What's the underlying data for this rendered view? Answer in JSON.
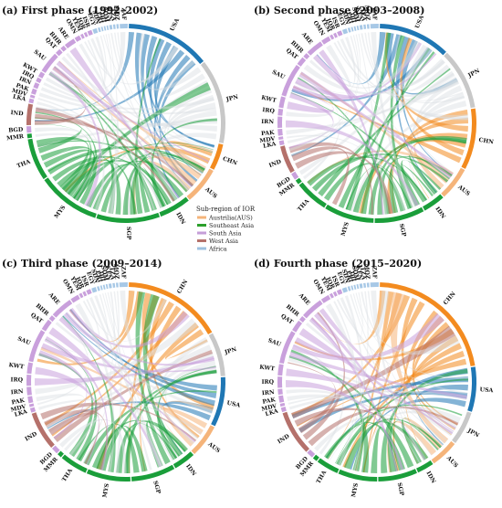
{
  "chart_data": {
    "type": "chord",
    "legend": {
      "title": "Sub-region of IOR",
      "entries": [
        {
          "name": "Austrilia(AUS)",
          "color": "#f5b47a"
        },
        {
          "name": "Southeast Asia",
          "color": "#2ca02c"
        },
        {
          "name": "South Asia",
          "color": "#c59ed8"
        },
        {
          "name": "West Asia",
          "color": "#b5716b"
        },
        {
          "name": "Africa",
          "color": "#9ec1e0"
        }
      ]
    },
    "colors": {
      "USA": "#1f77b4",
      "JPN": "#c8c8c8",
      "CHN": "#f38b1f",
      "Austrilia(AUS)": "#f5b47a",
      "Southeast Asia": "#1a9e3a",
      "South Asia": "#c9a0dc",
      "West Asia": "#b5716b",
      "Africa": "#a7c8e6"
    },
    "panels": [
      {
        "title": "(a) First phase (1992–2002)",
        "sectors": [
          {
            "name": "USA",
            "group": "USA",
            "weight": 16
          },
          {
            "name": "JPN",
            "group": "JPN",
            "weight": 16
          },
          {
            "name": "CHN",
            "group": "CHN",
            "weight": 5
          },
          {
            "name": "AUS",
            "group": "Austrilia(AUS)",
            "weight": 7
          },
          {
            "name": "IDN",
            "group": "Southeast Asia",
            "weight": 6
          },
          {
            "name": "SGP",
            "group": "Southeast Asia",
            "weight": 12
          },
          {
            "name": "MYS",
            "group": "Southeast Asia",
            "weight": 12
          },
          {
            "name": "THA",
            "group": "Southeast Asia",
            "weight": 8
          },
          {
            "name": "MMR",
            "group": "Southeast Asia",
            "weight": 0.8
          },
          {
            "name": "BGD",
            "group": "South Asia",
            "weight": 1.2
          },
          {
            "name": "IND",
            "group": "West Asia",
            "weight": 4
          },
          {
            "name": "LKA",
            "group": "South Asia",
            "weight": 0.8
          },
          {
            "name": "MDV",
            "group": "South Asia",
            "weight": 0.5
          },
          {
            "name": "PAK",
            "group": "South Asia",
            "weight": 1
          },
          {
            "name": "IRN",
            "group": "South Asia",
            "weight": 1
          },
          {
            "name": "IRQ",
            "group": "South Asia",
            "weight": 0.8
          },
          {
            "name": "KWT",
            "group": "South Asia",
            "weight": 1
          },
          {
            "name": "SAU",
            "group": "South Asia",
            "weight": 4
          },
          {
            "name": "QAT",
            "group": "South Asia",
            "weight": 1
          },
          {
            "name": "BHR",
            "group": "South Asia",
            "weight": 0.8
          },
          {
            "name": "ARE",
            "group": "South Asia",
            "weight": 2
          },
          {
            "name": "OMN",
            "group": "South Asia",
            "weight": 1
          },
          {
            "name": "YEM",
            "group": "South Asia",
            "weight": 0.5
          },
          {
            "name": "JOR",
            "group": "South Asia",
            "weight": 0.5
          },
          {
            "name": "ISR",
            "group": "South Asia",
            "weight": 0.8
          },
          {
            "name": "EGY",
            "group": "Africa",
            "weight": 0.8
          },
          {
            "name": "SDN",
            "group": "Africa",
            "weight": 0.4
          },
          {
            "name": "ERI",
            "group": "Africa",
            "weight": 0.3
          },
          {
            "name": "DJI",
            "group": "Africa",
            "weight": 0.3
          },
          {
            "name": "SOM",
            "group": "Africa",
            "weight": 0.3
          },
          {
            "name": "KEN",
            "group": "Africa",
            "weight": 0.5
          },
          {
            "name": "TZA",
            "group": "Africa",
            "weight": 0.4
          },
          {
            "name": "MOZ",
            "group": "Africa",
            "weight": 0.4
          },
          {
            "name": "ZAF",
            "group": "Africa",
            "weight": 1.5
          }
        ]
      },
      {
        "title": "(b) Second phase (2003–2008)",
        "sectors": [
          {
            "name": "USA",
            "group": "USA",
            "weight": 13
          },
          {
            "name": "JPN",
            "group": "JPN",
            "weight": 11
          },
          {
            "name": "CHN",
            "group": "CHN",
            "weight": 11
          },
          {
            "name": "AUS",
            "group": "Austrilia(AUS)",
            "weight": 6
          },
          {
            "name": "IDN",
            "group": "Southeast Asia",
            "weight": 4
          },
          {
            "name": "SGP",
            "group": "Southeast Asia",
            "weight": 9
          },
          {
            "name": "MYS",
            "group": "Southeast Asia",
            "weight": 9
          },
          {
            "name": "THA",
            "group": "Southeast Asia",
            "weight": 6
          },
          {
            "name": "MMR",
            "group": "Southeast Asia",
            "weight": 0.8
          },
          {
            "name": "BGD",
            "group": "South Asia",
            "weight": 1.2
          },
          {
            "name": "IND",
            "group": "West Asia",
            "weight": 5
          },
          {
            "name": "LKA",
            "group": "South Asia",
            "weight": 0.8
          },
          {
            "name": "MDV",
            "group": "South Asia",
            "weight": 0.5
          },
          {
            "name": "PAK",
            "group": "South Asia",
            "weight": 1.2
          },
          {
            "name": "IRN",
            "group": "South Asia",
            "weight": 2
          },
          {
            "name": "IRQ",
            "group": "South Asia",
            "weight": 1.2
          },
          {
            "name": "KWT",
            "group": "South Asia",
            "weight": 2
          },
          {
            "name": "SAU",
            "group": "South Asia",
            "weight": 6
          },
          {
            "name": "QAT",
            "group": "South Asia",
            "weight": 1.5
          },
          {
            "name": "BHR",
            "group": "South Asia",
            "weight": 0.8
          },
          {
            "name": "ARE",
            "group": "South Asia",
            "weight": 3
          },
          {
            "name": "OMN",
            "group": "South Asia",
            "weight": 1.5
          },
          {
            "name": "YEM",
            "group": "South Asia",
            "weight": 0.5
          },
          {
            "name": "JOR",
            "group": "South Asia",
            "weight": 0.5
          },
          {
            "name": "ISR",
            "group": "South Asia",
            "weight": 0.8
          },
          {
            "name": "EGY",
            "group": "Africa",
            "weight": 0.8
          },
          {
            "name": "SDN",
            "group": "Africa",
            "weight": 0.4
          },
          {
            "name": "ERI",
            "group": "Africa",
            "weight": 0.3
          },
          {
            "name": "DJI",
            "group": "Africa",
            "weight": 0.3
          },
          {
            "name": "SOM",
            "group": "Africa",
            "weight": 0.3
          },
          {
            "name": "KEN",
            "group": "Africa",
            "weight": 0.5
          },
          {
            "name": "TZA",
            "group": "Africa",
            "weight": 0.4
          },
          {
            "name": "MOZ",
            "group": "Africa",
            "weight": 0.4
          },
          {
            "name": "ZAF",
            "group": "Africa",
            "weight": 1.5
          }
        ]
      },
      {
        "title": "(c) Third phase (2009–2014)",
        "sectors": [
          {
            "name": "CHN",
            "group": "CHN",
            "weight": 18
          },
          {
            "name": "JPN",
            "group": "JPN",
            "weight": 8
          },
          {
            "name": "USA",
            "group": "USA",
            "weight": 9
          },
          {
            "name": "AUS",
            "group": "Austrilia(AUS)",
            "weight": 6
          },
          {
            "name": "IDN",
            "group": "Southeast Asia",
            "weight": 4
          },
          {
            "name": "SGP",
            "group": "Southeast Asia",
            "weight": 8
          },
          {
            "name": "MYS",
            "group": "Southeast Asia",
            "weight": 8
          },
          {
            "name": "THA",
            "group": "Southeast Asia",
            "weight": 5
          },
          {
            "name": "MMR",
            "group": "Southeast Asia",
            "weight": 0.8
          },
          {
            "name": "BGD",
            "group": "South Asia",
            "weight": 1.2
          },
          {
            "name": "IND",
            "group": "West Asia",
            "weight": 7
          },
          {
            "name": "LKA",
            "group": "South Asia",
            "weight": 0.8
          },
          {
            "name": "MDV",
            "group": "South Asia",
            "weight": 0.5
          },
          {
            "name": "PAK",
            "group": "South Asia",
            "weight": 1.2
          },
          {
            "name": "IRN",
            "group": "South Asia",
            "weight": 1.5
          },
          {
            "name": "IRQ",
            "group": "South Asia",
            "weight": 2
          },
          {
            "name": "KWT",
            "group": "South Asia",
            "weight": 2
          },
          {
            "name": "SAU",
            "group": "South Asia",
            "weight": 6
          },
          {
            "name": "QAT",
            "group": "South Asia",
            "weight": 2
          },
          {
            "name": "BHR",
            "group": "South Asia",
            "weight": 0.8
          },
          {
            "name": "ARE",
            "group": "South Asia",
            "weight": 4
          },
          {
            "name": "OMN",
            "group": "South Asia",
            "weight": 1.5
          },
          {
            "name": "YEM",
            "group": "South Asia",
            "weight": 0.5
          },
          {
            "name": "JOR",
            "group": "South Asia",
            "weight": 0.5
          },
          {
            "name": "ISR",
            "group": "South Asia",
            "weight": 0.8
          },
          {
            "name": "EGY",
            "group": "Africa",
            "weight": 0.8
          },
          {
            "name": "SDN",
            "group": "Africa",
            "weight": 0.4
          },
          {
            "name": "ERI",
            "group": "Africa",
            "weight": 0.3
          },
          {
            "name": "DJI",
            "group": "Africa",
            "weight": 0.3
          },
          {
            "name": "SOM",
            "group": "Africa",
            "weight": 0.3
          },
          {
            "name": "KEN",
            "group": "Africa",
            "weight": 0.5
          },
          {
            "name": "TZA",
            "group": "Africa",
            "weight": 0.4
          },
          {
            "name": "MOZ",
            "group": "Africa",
            "weight": 0.4
          },
          {
            "name": "ZAF",
            "group": "Africa",
            "weight": 1.5
          }
        ]
      },
      {
        "title": "(d) Fourth phase (2015–2020)",
        "sectors": [
          {
            "name": "CHN",
            "group": "CHN",
            "weight": 24
          },
          {
            "name": "USA",
            "group": "USA",
            "weight": 8
          },
          {
            "name": "JPN",
            "group": "JPN",
            "weight": 6
          },
          {
            "name": "AUS",
            "group": "Austrilia(AUS)",
            "weight": 5
          },
          {
            "name": "IDN",
            "group": "Southeast Asia",
            "weight": 3
          },
          {
            "name": "SGP",
            "group": "Southeast Asia",
            "weight": 7
          },
          {
            "name": "MYS",
            "group": "Southeast Asia",
            "weight": 7
          },
          {
            "name": "THA",
            "group": "Southeast Asia",
            "weight": 4
          },
          {
            "name": "MMR",
            "group": "Southeast Asia",
            "weight": 0.8
          },
          {
            "name": "BGD",
            "group": "South Asia",
            "weight": 1.2
          },
          {
            "name": "IND",
            "group": "West Asia",
            "weight": 8
          },
          {
            "name": "LKA",
            "group": "South Asia",
            "weight": 0.8
          },
          {
            "name": "MDV",
            "group": "South Asia",
            "weight": 0.5
          },
          {
            "name": "PAK",
            "group": "South Asia",
            "weight": 1.2
          },
          {
            "name": "IRN",
            "group": "South Asia",
            "weight": 1
          },
          {
            "name": "IRQ",
            "group": "South Asia",
            "weight": 2
          },
          {
            "name": "KWT",
            "group": "South Asia",
            "weight": 2
          },
          {
            "name": "SAU",
            "group": "South Asia",
            "weight": 6
          },
          {
            "name": "QAT",
            "group": "South Asia",
            "weight": 2
          },
          {
            "name": "BHR",
            "group": "South Asia",
            "weight": 0.8
          },
          {
            "name": "ARE",
            "group": "South Asia",
            "weight": 4
          },
          {
            "name": "OMN",
            "group": "South Asia",
            "weight": 1.5
          },
          {
            "name": "YEM",
            "group": "South Asia",
            "weight": 0.5
          },
          {
            "name": "JOR",
            "group": "South Asia",
            "weight": 0.5
          },
          {
            "name": "ISR",
            "group": "South Asia",
            "weight": 0.8
          },
          {
            "name": "EGY",
            "group": "Africa",
            "weight": 0.8
          },
          {
            "name": "SDN",
            "group": "Africa",
            "weight": 0.4
          },
          {
            "name": "ERI",
            "group": "Africa",
            "weight": 0.3
          },
          {
            "name": "DJI",
            "group": "Africa",
            "weight": 0.3
          },
          {
            "name": "SOM",
            "group": "Africa",
            "weight": 0.3
          },
          {
            "name": "KEN",
            "group": "Africa",
            "weight": 0.5
          },
          {
            "name": "TZA",
            "group": "Africa",
            "weight": 0.4
          },
          {
            "name": "MOZ",
            "group": "Africa",
            "weight": 0.4
          },
          {
            "name": "ZAF",
            "group": "Africa",
            "weight": 1.5
          }
        ]
      }
    ]
  }
}
